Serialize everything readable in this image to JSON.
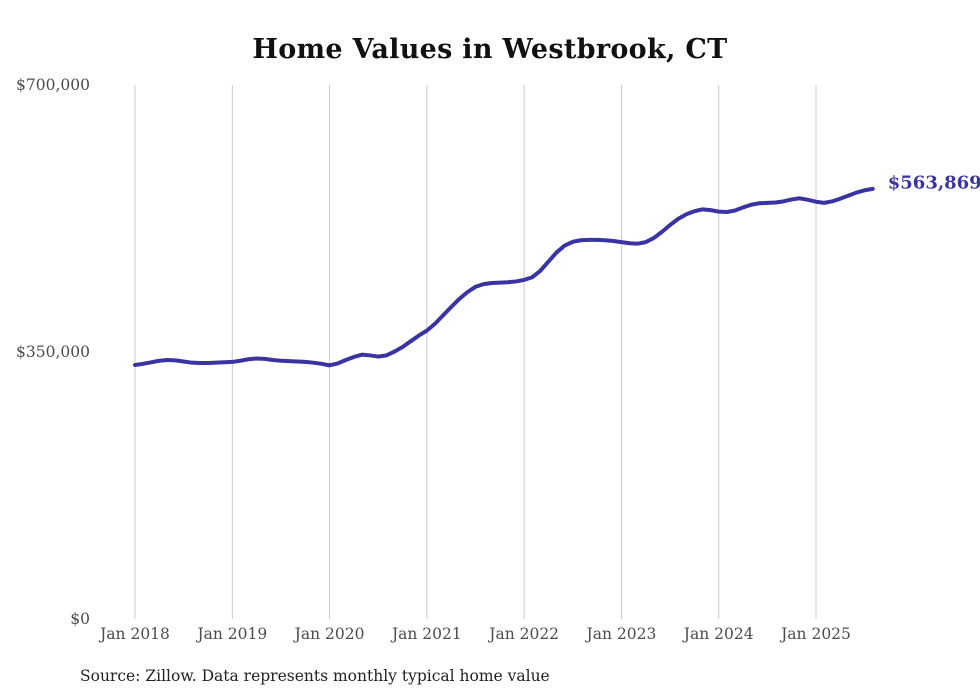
{
  "title": "Home Values in Westbrook, CT",
  "source_note": "Source: Zillow. Data represents monthly typical home value",
  "latest_value_label": "$563,869",
  "colors": {
    "line": "#3a34a2",
    "latest_label": "#3a34a2",
    "grid": "#c9c9c9",
    "axis_text": "#4c4c4c",
    "title_text": "#111111",
    "source_text": "#222222",
    "background": "#ffffff"
  },
  "chart_data": {
    "type": "line",
    "title": "Home Values in Westbrook, CT",
    "xlabel": "",
    "ylabel": "",
    "ylim": [
      0,
      700000
    ],
    "y_ticks_top_to_bottom": [
      700000,
      350000,
      0
    ],
    "y_tick_labels": [
      "$700,000",
      "$350,000",
      "$0"
    ],
    "x_tick_labels": [
      "Jan 2018",
      "Jan 2019",
      "Jan 2020",
      "Jan 2021",
      "Jan 2022",
      "Jan 2023",
      "Jan 2024",
      "Jan 2025"
    ],
    "grid": "vertical-only",
    "legend": "none",
    "last_point_label": "$563,869",
    "last_point_value": 563869,
    "months": [
      "2018-01",
      "2018-02",
      "2018-03",
      "2018-04",
      "2018-05",
      "2018-06",
      "2018-07",
      "2018-08",
      "2018-09",
      "2018-10",
      "2018-11",
      "2018-12",
      "2019-01",
      "2019-02",
      "2019-03",
      "2019-04",
      "2019-05",
      "2019-06",
      "2019-07",
      "2019-08",
      "2019-09",
      "2019-10",
      "2019-11",
      "2019-12",
      "2020-01",
      "2020-02",
      "2020-03",
      "2020-04",
      "2020-05",
      "2020-06",
      "2020-07",
      "2020-08",
      "2020-09",
      "2020-10",
      "2020-11",
      "2020-12",
      "2021-01",
      "2021-02",
      "2021-03",
      "2021-04",
      "2021-05",
      "2021-06",
      "2021-07",
      "2021-08",
      "2021-09",
      "2021-10",
      "2021-11",
      "2021-12",
      "2022-01",
      "2022-02",
      "2022-03",
      "2022-04",
      "2022-05",
      "2022-06",
      "2022-07",
      "2022-08",
      "2022-09",
      "2022-10",
      "2022-11",
      "2022-12",
      "2023-01",
      "2023-02",
      "2023-03",
      "2023-04",
      "2023-05",
      "2023-06",
      "2023-07",
      "2023-08",
      "2023-09",
      "2023-10",
      "2023-11",
      "2023-12",
      "2024-01",
      "2024-02",
      "2024-03",
      "2024-04",
      "2024-05",
      "2024-06",
      "2024-07",
      "2024-08",
      "2024-09",
      "2024-10",
      "2024-11",
      "2024-12",
      "2025-01",
      "2025-02",
      "2025-03",
      "2025-04",
      "2025-05",
      "2025-06",
      "2025-07",
      "2025-08"
    ],
    "values": [
      333000,
      334500,
      336500,
      338500,
      339500,
      339000,
      337500,
      336000,
      335500,
      335500,
      336000,
      336500,
      337000,
      338500,
      340500,
      341500,
      341000,
      339500,
      338500,
      338000,
      337500,
      337000,
      336000,
      334500,
      332500,
      335000,
      339500,
      343500,
      346500,
      345500,
      344000,
      345500,
      350500,
      356500,
      364000,
      371500,
      378000,
      387000,
      398000,
      409000,
      419500,
      428500,
      435500,
      439000,
      440500,
      441000,
      441500,
      442500,
      444500,
      448000,
      456500,
      468500,
      480500,
      489500,
      494500,
      496500,
      497000,
      497000,
      496500,
      495500,
      494000,
      492500,
      492000,
      494000,
      499500,
      507500,
      516500,
      524500,
      530500,
      534500,
      537000,
      536000,
      534000,
      533500,
      535500,
      539500,
      543000,
      545000,
      545500,
      546000,
      547500,
      550000,
      551500,
      549500,
      547000,
      545500,
      547500,
      551000,
      555000,
      559000,
      562000,
      563869
    ]
  }
}
